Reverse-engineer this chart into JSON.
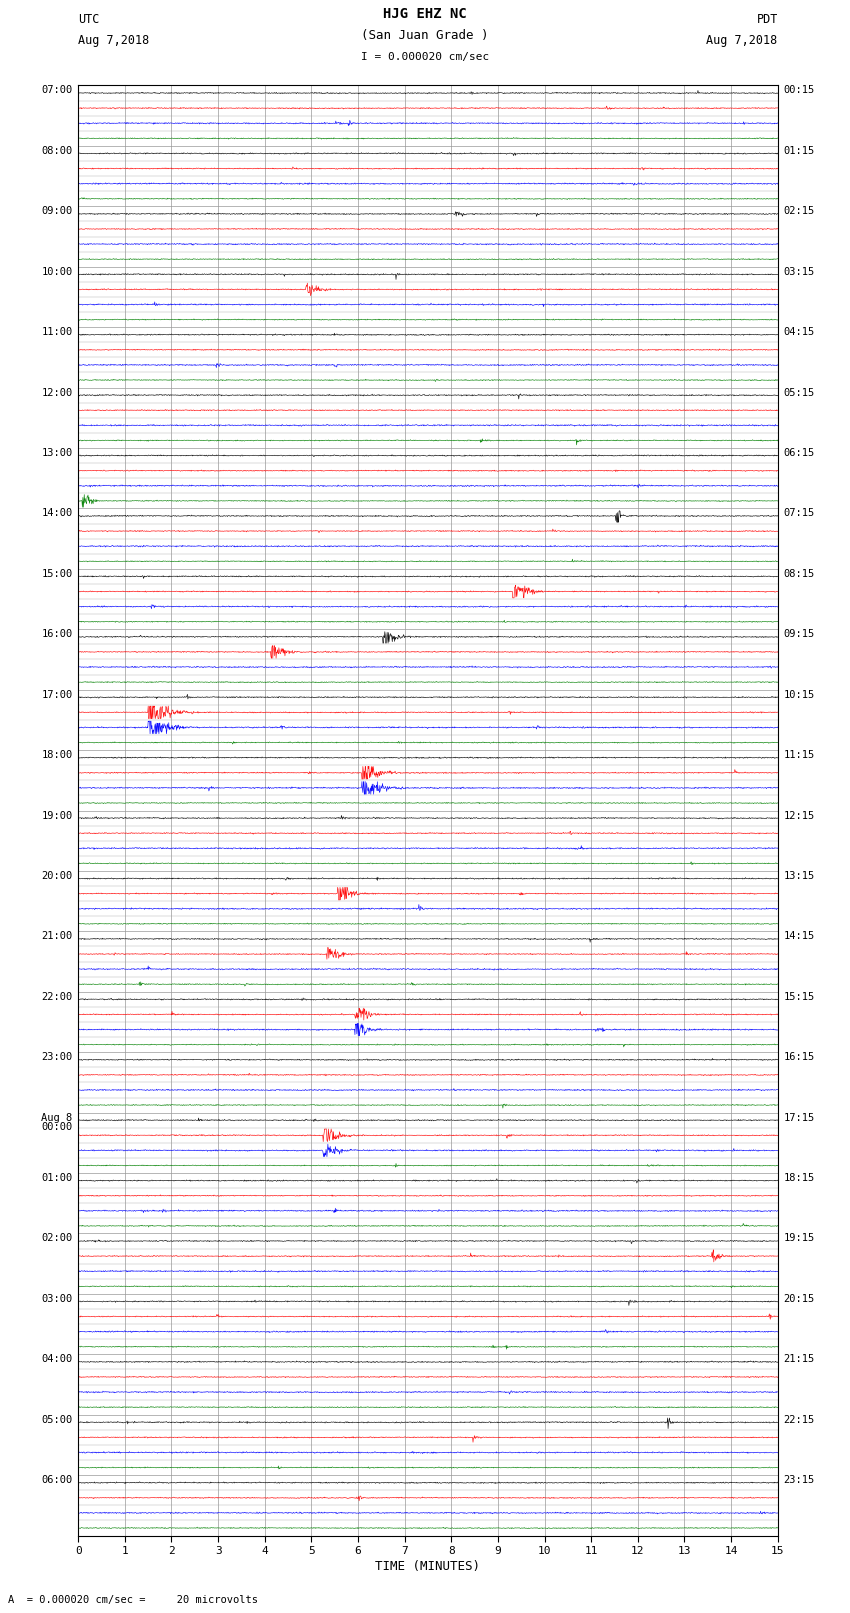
{
  "title_line1": "HJG EHZ NC",
  "title_line2": "(San Juan Grade )",
  "title_scale": "I = 0.000020 cm/sec",
  "label_utc": "UTC",
  "label_utc_date": "Aug 7,2018",
  "label_pdt": "PDT",
  "label_pdt_date": "Aug 7,2018",
  "xlabel": "TIME (MINUTES)",
  "bottom_label": "A  = 0.000020 cm/sec =     20 microvolts",
  "bg_color": "#ffffff",
  "xmin": 0,
  "xmax": 15,
  "xticks": [
    0,
    1,
    2,
    3,
    4,
    5,
    6,
    7,
    8,
    9,
    10,
    11,
    12,
    13,
    14,
    15
  ],
  "n_rows": 96,
  "left_time_labels": [
    "07:00",
    "",
    "",
    "",
    "08:00",
    "",
    "",
    "",
    "09:00",
    "",
    "",
    "",
    "10:00",
    "",
    "",
    "",
    "11:00",
    "",
    "",
    "",
    "12:00",
    "",
    "",
    "",
    "13:00",
    "",
    "",
    "",
    "14:00",
    "",
    "",
    "",
    "15:00",
    "",
    "",
    "",
    "16:00",
    "",
    "",
    "",
    "17:00",
    "",
    "",
    "",
    "18:00",
    "",
    "",
    "",
    "19:00",
    "",
    "",
    "",
    "20:00",
    "",
    "",
    "",
    "21:00",
    "",
    "",
    "",
    "22:00",
    "",
    "",
    "",
    "23:00",
    "",
    "",
    "",
    "Aug 8\n00:00",
    "",
    "",
    "",
    "01:00",
    "",
    "",
    "",
    "02:00",
    "",
    "",
    "",
    "03:00",
    "",
    "",
    "",
    "04:00",
    "",
    "",
    "",
    "05:00",
    "",
    "",
    "",
    "06:00",
    "",
    "",
    ""
  ],
  "right_time_labels": [
    "00:15",
    "",
    "",
    "",
    "01:15",
    "",
    "",
    "",
    "02:15",
    "",
    "",
    "",
    "03:15",
    "",
    "",
    "",
    "04:15",
    "",
    "",
    "",
    "05:15",
    "",
    "",
    "",
    "06:15",
    "",
    "",
    "",
    "07:15",
    "",
    "",
    "",
    "08:15",
    "",
    "",
    "",
    "09:15",
    "",
    "",
    "",
    "10:15",
    "",
    "",
    "",
    "11:15",
    "",
    "",
    "",
    "12:15",
    "",
    "",
    "",
    "13:15",
    "",
    "",
    "",
    "14:15",
    "",
    "",
    "",
    "15:15",
    "",
    "",
    "",
    "16:15",
    "",
    "",
    "",
    "17:15",
    "",
    "",
    "",
    "18:15",
    "",
    "",
    "",
    "19:15",
    "",
    "",
    "",
    "20:15",
    "",
    "",
    "",
    "21:15",
    "",
    "",
    "",
    "22:15",
    "",
    "",
    "",
    "23:15",
    "",
    "",
    ""
  ],
  "trace_colors": [
    "black",
    "red",
    "blue",
    "green"
  ],
  "fig_width": 8.5,
  "fig_height": 16.13,
  "dpi": 100
}
